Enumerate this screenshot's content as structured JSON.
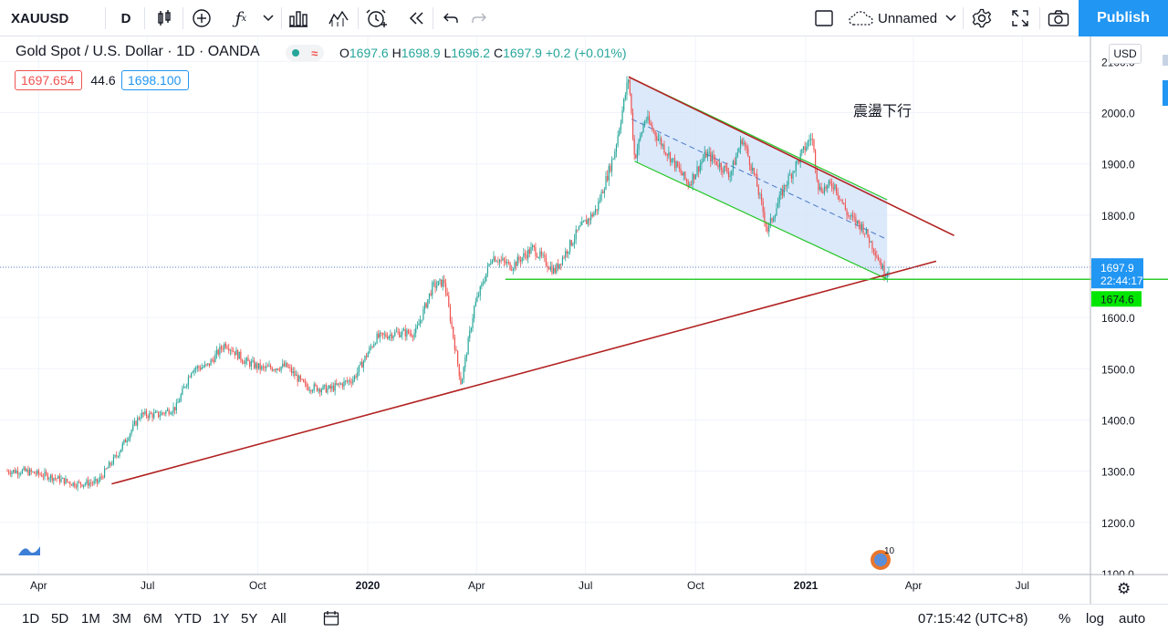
{
  "toolbar": {
    "symbol": "XAUUSD",
    "interval": "D",
    "layout_name": "Unnamed",
    "publish_label": "Publish",
    "icons": [
      "candles-icon",
      "add-indicator-icon",
      "fx-icon",
      "chevron-down-icon",
      "templates-icon",
      "compare-icon",
      "alert-icon",
      "replay-icon",
      "undo-icon",
      "redo-icon",
      "fullscreen-layout-icon",
      "cloud-icon",
      "settings-icon",
      "fullscreen-icon",
      "camera-icon"
    ]
  },
  "legend": {
    "title": "Gold Spot / U.S. Dollar · 1D · OANDA",
    "open_label": "O",
    "open": "1697.6",
    "high_label": "H",
    "high": "1698.9",
    "low_label": "L",
    "low": "1696.2",
    "close_label": "C",
    "close": "1697.9",
    "change": "+0.2 (+0.01%)",
    "bid": "1697.654",
    "spread": "44.6",
    "ask": "1698.100",
    "currency": "USD"
  },
  "colors": {
    "up": "#26a69a",
    "down": "#ef5350",
    "trend_red": "#b22222",
    "channel_green": "#26c826",
    "channel_fill": "#cfe2fa",
    "price_label": "#2196f3",
    "support_label": "#00e600"
  },
  "chart_data": {
    "type": "candlestick",
    "symbol": "XAUUSD",
    "interval": "1D",
    "x_tick_labels": [
      "Apr",
      "Jul",
      "Oct",
      "2020",
      "Apr",
      "Jul",
      "Oct",
      "2021",
      "Apr",
      "Jul"
    ],
    "y_tick_labels": [
      "1100.0",
      "1200.0",
      "1300.0",
      "1400.0",
      "1500.0",
      "1600.0",
      "1700.0",
      "1800.0",
      "1900.0",
      "2000.0",
      "2100.0"
    ],
    "ylim": [
      1090,
      2120
    ],
    "last_price": "1697.9",
    "countdown": "22:44:17",
    "support_price": "1674.6",
    "annotation": "震盪下行",
    "price_path": [
      [
        "2019-03-20",
        1300
      ],
      [
        "2019-04-10",
        1290
      ],
      [
        "2019-05-01",
        1275
      ],
      [
        "2019-05-20",
        1278
      ],
      [
        "2019-06-05",
        1330
      ],
      [
        "2019-06-25",
        1410
      ],
      [
        "2019-07-10",
        1410
      ],
      [
        "2019-07-25",
        1425
      ],
      [
        "2019-08-07",
        1500
      ],
      [
        "2019-08-20",
        1505
      ],
      [
        "2019-09-04",
        1550
      ],
      [
        "2019-09-20",
        1515
      ],
      [
        "2019-10-05",
        1500
      ],
      [
        "2019-10-25",
        1505
      ],
      [
        "2019-11-10",
        1465
      ],
      [
        "2019-11-30",
        1460
      ],
      [
        "2019-12-20",
        1480
      ],
      [
        "2020-01-08",
        1560
      ],
      [
        "2020-01-25",
        1570
      ],
      [
        "2020-02-10",
        1570
      ],
      [
        "2020-02-24",
        1660
      ],
      [
        "2020-03-05",
        1670
      ],
      [
        "2020-03-19",
        1470
      ],
      [
        "2020-03-30",
        1620
      ],
      [
        "2020-04-14",
        1720
      ],
      [
        "2020-04-30",
        1700
      ],
      [
        "2020-05-18",
        1735
      ],
      [
        "2020-06-05",
        1690
      ],
      [
        "2020-06-25",
        1770
      ],
      [
        "2020-07-10",
        1810
      ],
      [
        "2020-07-25",
        1920
      ],
      [
        "2020-08-06",
        2070
      ],
      [
        "2020-08-11",
        1910
      ],
      [
        "2020-08-20",
        1990
      ],
      [
        "2020-09-05",
        1930
      ],
      [
        "2020-09-25",
        1860
      ],
      [
        "2020-10-10",
        1920
      ],
      [
        "2020-10-30",
        1880
      ],
      [
        "2020-11-09",
        1950
      ],
      [
        "2020-11-20",
        1870
      ],
      [
        "2020-11-30",
        1770
      ],
      [
        "2020-12-15",
        1860
      ],
      [
        "2021-01-06",
        1955
      ],
      [
        "2021-01-12",
        1850
      ],
      [
        "2021-01-25",
        1860
      ],
      [
        "2021-02-05",
        1800
      ],
      [
        "2021-02-18",
        1775
      ],
      [
        "2021-02-28",
        1730
      ],
      [
        "2021-03-08",
        1685
      ],
      [
        "2021-03-12",
        1697.9
      ]
    ],
    "drawings": [
      {
        "type": "trend_line",
        "color": "red",
        "from": [
          "2019-06-01",
          1275
        ],
        "to": [
          "2021-04-20",
          1710
        ]
      },
      {
        "type": "trend_line",
        "color": "red",
        "from": [
          "2020-08-06",
          2070
        ],
        "to": [
          "2021-05-05",
          1760
        ]
      },
      {
        "type": "parallel_channel",
        "color": "green",
        "upper": [
          [
            "2020-08-06",
            2070
          ],
          [
            "2021-03-10",
            1830
          ]
        ],
        "lower": [
          [
            "2020-08-11",
            1905
          ],
          [
            "2021-03-10",
            1675
          ]
        ]
      },
      {
        "type": "horizontal_ray",
        "color": "green",
        "from": [
          "2020-04-25",
          1674.6
        ],
        "price": 1674.6
      }
    ]
  },
  "timeframes": [
    "1D",
    "5D",
    "1M",
    "3M",
    "6M",
    "YTD",
    "1Y",
    "5Y",
    "All"
  ],
  "bottom": {
    "time": "07:15:42 (UTC+8)",
    "percent": "%",
    "log": "log",
    "auto": "auto"
  }
}
